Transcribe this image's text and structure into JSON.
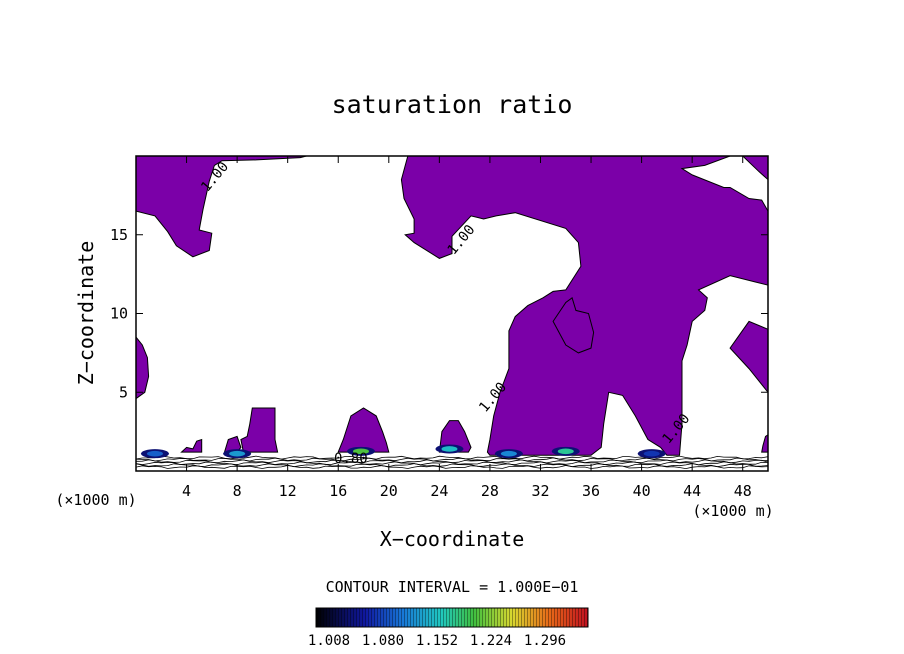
{
  "chart_data": {
    "type": "contour",
    "title": "saturation ratio",
    "xlabel": "X−coordinate",
    "ylabel": "Z−coordinate",
    "x_unit_left": "(×1000 m)",
    "x_unit_right": "(×1000 m)",
    "xlim": [
      0,
      50
    ],
    "ylim": [
      0,
      20
    ],
    "x_ticks": [
      4,
      8,
      12,
      16,
      20,
      24,
      28,
      32,
      36,
      40,
      44,
      48
    ],
    "y_ticks": [
      5,
      10,
      15
    ],
    "contour_interval_text": "CONTOUR INTERVAL = 1.000E−01",
    "fill_color": "#7b00a8",
    "colorbar": {
      "labels": [
        "1.008",
        "1.080",
        "1.152",
        "1.224",
        "1.296"
      ],
      "min": 1.008,
      "max": 1.332
    },
    "contour_labels": [
      {
        "text": "1.00",
        "x": 6.5,
        "y": 18.5
      },
      {
        "text": "1.00",
        "x": 26.0,
        "y": 14.5
      },
      {
        "text": "1.00",
        "x": 28.5,
        "y": 4.5
      },
      {
        "text": "1.00",
        "x": 43.0,
        "y": 2.5
      },
      {
        "text": "0.80",
        "x": 17.0,
        "y": 0.5
      }
    ],
    "supersaturated_regions": [
      [
        [
          0,
          20
        ],
        [
          0,
          16.5
        ],
        [
          1.5,
          16.2
        ],
        [
          2.5,
          15.2
        ],
        [
          3.2,
          14.3
        ],
        [
          4.5,
          13.6
        ],
        [
          5.8,
          14.0
        ],
        [
          6.0,
          15.1
        ],
        [
          5.0,
          15.3
        ],
        [
          5.3,
          16.6
        ],
        [
          5.8,
          18.4
        ],
        [
          6.2,
          19.4
        ],
        [
          6.8,
          19.7
        ],
        [
          9.5,
          19.75
        ],
        [
          13.0,
          19.9
        ],
        [
          13.5,
          20
        ]
      ],
      [
        [
          0,
          8.5
        ],
        [
          0.5,
          8.0
        ],
        [
          0.9,
          7.2
        ],
        [
          1.0,
          6.0
        ],
        [
          0.7,
          5.0
        ],
        [
          0,
          4.6
        ]
      ],
      [
        [
          21.5,
          20
        ],
        [
          21.0,
          18.5
        ],
        [
          21.2,
          17.3
        ],
        [
          22.0,
          16.0
        ],
        [
          22.0,
          15.1
        ],
        [
          21.3,
          15.0
        ],
        [
          22.0,
          14.5
        ],
        [
          24.0,
          13.5
        ],
        [
          25.0,
          13.8
        ],
        [
          25.0,
          14.9
        ],
        [
          26.5,
          16.2
        ],
        [
          27.0,
          16.1
        ],
        [
          27.5,
          16.0
        ],
        [
          28.5,
          16.2
        ],
        [
          30.0,
          16.4
        ],
        [
          34.0,
          15.4
        ],
        [
          35.0,
          14.5
        ],
        [
          35.2,
          13.0
        ],
        [
          34.0,
          11.5
        ],
        [
          33.0,
          11.4
        ],
        [
          32.2,
          11.0
        ],
        [
          31.0,
          10.5
        ],
        [
          30.0,
          9.8
        ],
        [
          29.5,
          8.9
        ],
        [
          29.5,
          6.5
        ],
        [
          28.8,
          5.0
        ],
        [
          28.3,
          3.5
        ],
        [
          28.0,
          2.0
        ],
        [
          27.8,
          1.2
        ],
        [
          28.0,
          1.0
        ],
        [
          36.0,
          1.0
        ],
        [
          36.8,
          1.5
        ],
        [
          37.0,
          3.0
        ],
        [
          37.2,
          4.0
        ],
        [
          37.4,
          5.0
        ],
        [
          38.5,
          4.8
        ],
        [
          39.5,
          3.5
        ],
        [
          40.5,
          2.0
        ],
        [
          41.5,
          1.5
        ],
        [
          42.0,
          1.0
        ],
        [
          43.0,
          1.0
        ],
        [
          43.2,
          3.0
        ],
        [
          43.2,
          7.0
        ],
        [
          43.6,
          8.0
        ],
        [
          44.0,
          9.5
        ],
        [
          45.0,
          10.2
        ],
        [
          45.2,
          11.0
        ],
        [
          44.5,
          11.5
        ],
        [
          47.0,
          12.4
        ],
        [
          49.0,
          12.0
        ],
        [
          50,
          11.8
        ],
        [
          50,
          16.5
        ],
        [
          49.5,
          17.2
        ],
        [
          48.5,
          17.3
        ],
        [
          47.0,
          18.0
        ],
        [
          46.5,
          18.0
        ],
        [
          44.0,
          18.8
        ],
        [
          43.2,
          19.2
        ],
        [
          45.0,
          19.4
        ],
        [
          47.0,
          20
        ]
      ],
      [
        [
          48.0,
          20
        ],
        [
          49.3,
          19.0
        ],
        [
          50,
          18.5
        ],
        [
          50,
          20
        ]
      ],
      [
        [
          47.0,
          7.8
        ],
        [
          48.5,
          6.5
        ],
        [
          50,
          5.0
        ],
        [
          50,
          9.0
        ],
        [
          48.5,
          9.5
        ]
      ],
      [
        [
          34.8,
          10.2
        ],
        [
          34.5,
          11.0
        ],
        [
          34.0,
          10.7
        ],
        [
          33.0,
          9.5
        ],
        [
          34.0,
          8.0
        ],
        [
          35.0,
          7.5
        ],
        [
          36.0,
          7.8
        ],
        [
          36.2,
          8.8
        ],
        [
          35.8,
          10.0
        ]
      ],
      [
        [
          8.5,
          1.2
        ],
        [
          8.3,
          2.0
        ],
        [
          8.8,
          2.2
        ],
        [
          9.0,
          3.0
        ],
        [
          9.2,
          4.0
        ],
        [
          10.0,
          4.0
        ],
        [
          11.0,
          4.0
        ],
        [
          11.0,
          2.0
        ],
        [
          11.2,
          1.2
        ]
      ],
      [
        [
          7.0,
          1.2
        ],
        [
          7.3,
          2.0
        ],
        [
          8.0,
          2.2
        ],
        [
          8.3,
          1.5
        ],
        [
          8.0,
          1.2
        ]
      ],
      [
        [
          3.6,
          1.2
        ],
        [
          4.0,
          1.5
        ],
        [
          4.5,
          1.4
        ],
        [
          4.8,
          1.9
        ],
        [
          5.2,
          2.0
        ],
        [
          5.2,
          1.2
        ]
      ],
      [
        [
          16.0,
          1.2
        ],
        [
          16.4,
          2.0
        ],
        [
          17.0,
          3.5
        ],
        [
          18.0,
          4.0
        ],
        [
          19.0,
          3.5
        ],
        [
          19.5,
          2.5
        ],
        [
          19.8,
          1.8
        ],
        [
          20.0,
          1.2
        ]
      ],
      [
        [
          24.0,
          1.2
        ],
        [
          24.2,
          2.5
        ],
        [
          24.8,
          3.2
        ],
        [
          25.5,
          3.2
        ],
        [
          26.0,
          2.5
        ],
        [
          26.5,
          1.5
        ],
        [
          26.3,
          1.2
        ]
      ],
      [
        [
          49.5,
          1.2
        ],
        [
          50,
          1.2
        ],
        [
          50,
          2.3
        ],
        [
          49.8,
          2.2
        ],
        [
          49.6,
          1.6
        ]
      ]
    ],
    "high_value_blobs": [
      {
        "x": 1.5,
        "y": 1.1,
        "value": 1.1
      },
      {
        "x": 8.0,
        "y": 1.1,
        "value": 1.13
      },
      {
        "x": 17.8,
        "y": 1.25,
        "value": 1.2
      },
      {
        "x": 24.8,
        "y": 1.4,
        "value": 1.15
      },
      {
        "x": 29.5,
        "y": 1.1,
        "value": 1.12
      },
      {
        "x": 34.0,
        "y": 1.25,
        "value": 1.17
      },
      {
        "x": 40.8,
        "y": 1.1,
        "value": 1.08
      }
    ]
  }
}
